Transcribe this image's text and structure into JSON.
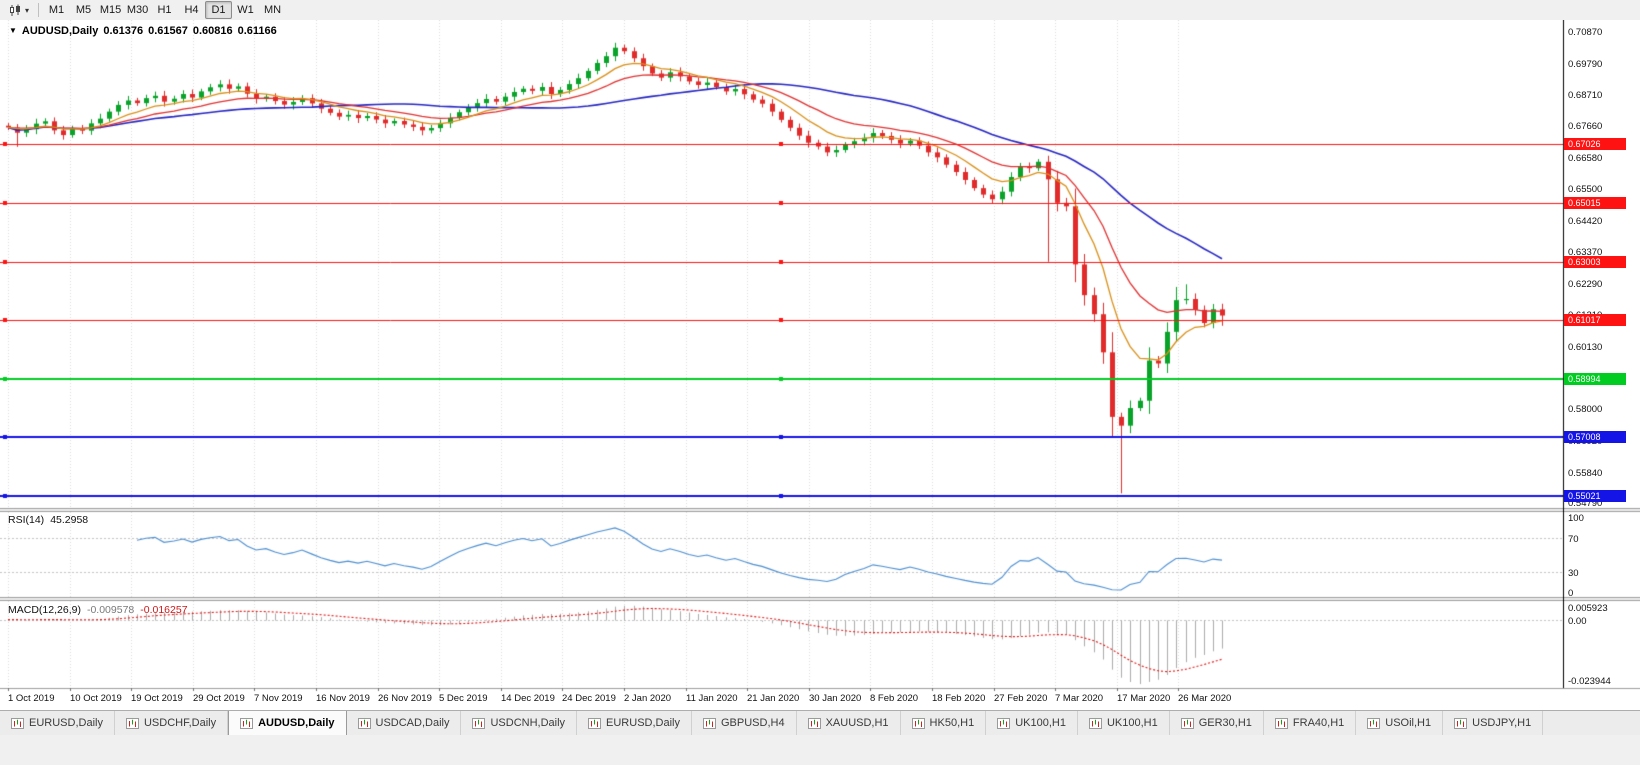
{
  "toolbar": {
    "chart_type_caret": "▾",
    "timeframes": [
      {
        "label": "M1",
        "active": false
      },
      {
        "label": "M5",
        "active": false
      },
      {
        "label": "M15",
        "active": false
      },
      {
        "label": "M30",
        "active": false
      },
      {
        "label": "H1",
        "active": false
      },
      {
        "label": "H4",
        "active": false
      },
      {
        "label": "D1",
        "active": true
      },
      {
        "label": "W1",
        "active": false
      },
      {
        "label": "MN",
        "active": false
      }
    ]
  },
  "chart_header": {
    "marker": "▼",
    "symbol": "AUDUSD,Daily",
    "open": "0.61376",
    "high": "0.61567",
    "low": "0.60816",
    "close": "0.61166"
  },
  "rsi_panel": {
    "name": "RSI(14)",
    "value": "45.2958",
    "line_color": "#4d8fd1",
    "level_lines": [
      70,
      30
    ],
    "ticks": [
      {
        "value": 100,
        "label": "100"
      },
      {
        "value": 70,
        "label": "70"
      },
      {
        "value": 30,
        "label": "30"
      },
      {
        "value": 0,
        "label": "0"
      }
    ]
  },
  "macd_panel": {
    "name": "MACD(12,26,9)",
    "main_value": "-0.009578",
    "signal_value": "-0.016257",
    "histogram_color": "#ababab",
    "signal_color": "#e01818",
    "ticks": {
      "top": "0.005923",
      "zero": "0.00",
      "bottom": "-0.023944"
    }
  },
  "price_axis": {
    "ticks": [
      "0.70870",
      "0.69790",
      "0.68710",
      "0.67660",
      "0.66580",
      "0.65500",
      "0.64420",
      "0.63370",
      "0.62290",
      "0.61210",
      "0.60130",
      "0.59080",
      "0.58000",
      "0.56920",
      "0.55840",
      "0.54790"
    ]
  },
  "levels": [
    {
      "label": "0.67026",
      "price": 0.67026,
      "color": "#ff1212",
      "width": 1,
      "text": "#ffffff"
    },
    {
      "label": "0.65015",
      "price": 0.65015,
      "color": "#ff1212",
      "width": 1,
      "text": "#ffffff"
    },
    {
      "label": "0.63003",
      "price": 0.63003,
      "color": "#ff1212",
      "width": 1,
      "text": "#ffffff"
    },
    {
      "label": "0.61017",
      "price": 0.61017,
      "color": "#ff1212",
      "width": 1,
      "text": "#ffffff"
    },
    {
      "label": "0.58994",
      "price": 0.58994,
      "color": "#00cc22",
      "width": 2,
      "text": "#ffffff"
    },
    {
      "label": "0.57008",
      "price": 0.57008,
      "color": "#1414e6",
      "width": 2,
      "text": "#ffffff"
    },
    {
      "label": "0.55021",
      "price": 0.55021,
      "color": "#1414e6",
      "width": 2,
      "text": "#ffffff"
    }
  ],
  "date_axis": [
    "1 Oct 2019",
    "10 Oct 2019",
    "19 Oct 2019",
    "29 Oct 2019",
    "7 Nov 2019",
    "16 Nov 2019",
    "26 Nov 2019",
    "5 Dec 2019",
    "14 Dec 2019",
    "24 Dec 2019",
    "2 Jan 2020",
    "11 Jan 2020",
    "21 Jan 2020",
    "30 Jan 2020",
    "8 Feb 2020",
    "18 Feb 2020",
    "27 Feb 2020",
    "7 Mar 2020",
    "17 Mar 2020",
    "26 Mar 2020"
  ],
  "tabs": [
    {
      "label": "EURUSD,Daily",
      "active": false
    },
    {
      "label": "USDCHF,Daily",
      "active": false
    },
    {
      "label": "AUDUSD,Daily",
      "active": true
    },
    {
      "label": "USDCAD,Daily",
      "active": false
    },
    {
      "label": "USDCNH,Daily",
      "active": false
    },
    {
      "label": "EURUSD,Daily",
      "active": false
    },
    {
      "label": "GBPUSD,H4",
      "active": false
    },
    {
      "label": "XAUUSD,H1",
      "active": false
    },
    {
      "label": "HK50,H1",
      "active": false
    },
    {
      "label": "UK100,H1",
      "active": false
    },
    {
      "label": "UK100,H1",
      "active": false
    },
    {
      "label": "GER30,H1",
      "active": false
    },
    {
      "label": "FRA40,H1",
      "active": false
    },
    {
      "label": "USOil,H1",
      "active": false
    },
    {
      "label": "USDJPY,H1",
      "active": false
    }
  ],
  "chart_data": {
    "type": "candlestick",
    "symbol": "AUDUSD",
    "timeframe": "Daily",
    "title": "AUDUSD,Daily",
    "ohlc_current": {
      "open": 0.61376,
      "high": 0.61567,
      "low": 0.60816,
      "close": 0.61166
    },
    "x_labels": [
      "1 Oct 2019",
      "10 Oct 2019",
      "19 Oct 2019",
      "29 Oct 2019",
      "7 Nov 2019",
      "16 Nov 2019",
      "26 Nov 2019",
      "5 Dec 2019",
      "14 Dec 2019",
      "24 Dec 2019",
      "2 Jan 2020",
      "11 Jan 2020",
      "21 Jan 2020",
      "30 Jan 2020",
      "8 Feb 2020",
      "18 Feb 2020",
      "27 Feb 2020",
      "7 Mar 2020",
      "17 Mar 2020",
      "26 Mar 2020"
    ],
    "closes": [
      0.6758,
      0.674,
      0.6752,
      0.6771,
      0.6779,
      0.6748,
      0.6732,
      0.6755,
      0.6747,
      0.6772,
      0.6788,
      0.6812,
      0.6835,
      0.685,
      0.6841,
      0.6858,
      0.6866,
      0.6846,
      0.6856,
      0.6872,
      0.686,
      0.6881,
      0.6895,
      0.6905,
      0.689,
      0.6898,
      0.6873,
      0.6855,
      0.6863,
      0.6848,
      0.6836,
      0.6845,
      0.6858,
      0.684,
      0.6822,
      0.6808,
      0.6795,
      0.6801,
      0.679,
      0.6797,
      0.6785,
      0.6772,
      0.678,
      0.6768,
      0.676,
      0.6748,
      0.6756,
      0.6772,
      0.6791,
      0.681,
      0.6826,
      0.6841,
      0.6855,
      0.6846,
      0.6863,
      0.6879,
      0.689,
      0.6883,
      0.6896,
      0.6872,
      0.6886,
      0.6906,
      0.6926,
      0.6951,
      0.6978,
      0.7001,
      0.703,
      0.7018,
      0.6994,
      0.6967,
      0.6942,
      0.6928,
      0.6946,
      0.6932,
      0.6915,
      0.6903,
      0.6911,
      0.6896,
      0.6881,
      0.6889,
      0.6871,
      0.6853,
      0.6839,
      0.6812,
      0.6784,
      0.6757,
      0.673,
      0.6706,
      0.6693,
      0.6673,
      0.6681,
      0.6699,
      0.6711,
      0.6723,
      0.6739,
      0.6729,
      0.6716,
      0.6703,
      0.6713,
      0.6696,
      0.6673,
      0.6656,
      0.6631,
      0.6606,
      0.6579,
      0.6551,
      0.6529,
      0.6513,
      0.6539,
      0.6589,
      0.6623,
      0.6619,
      0.6641,
      0.6581,
      0.6501,
      0.6489,
      0.6291,
      0.6186,
      0.6121,
      0.5991,
      0.5771,
      0.5741,
      0.5801,
      0.5826,
      0.5963,
      0.5953,
      0.6061,
      0.6169,
      0.6173,
      0.6136,
      0.6091,
      0.6138,
      0.6117
    ],
    "overrides": {
      "1": {
        "l": 0.6692
      },
      "113": {
        "l": 0.63
      },
      "121": {
        "l": 0.551
      },
      "127": {
        "h": 0.6214
      },
      "128": {
        "h": 0.6223
      },
      "132": {
        "o": 0.61376,
        "h": 0.61567,
        "l": 0.60816,
        "c": 0.61166
      }
    },
    "candle_up_color": "#0aa32a",
    "candle_down_color": "#e12b2b",
    "moving_averages": [
      {
        "name": "fast-ma",
        "type": "ema",
        "period": 8,
        "color": "#d99018"
      },
      {
        "name": "medium-ma",
        "type": "ema",
        "period": 17,
        "color": "#e03030"
      },
      {
        "name": "slow-ma",
        "type": "sma",
        "period": 34,
        "color": "#2626c2"
      }
    ],
    "price_range": {
      "axis_top": 0.7087,
      "axis_bottom": 0.5479
    },
    "horizontal_levels": [
      0.67026,
      0.65015,
      0.63003,
      0.61017,
      0.58994,
      0.57008,
      0.55021
    ],
    "rsi": {
      "period": 14,
      "current": 45.2958,
      "range": [
        0,
        100
      ],
      "levels": [
        70,
        30
      ]
    },
    "macd": {
      "fast": 12,
      "slow": 26,
      "signal": 9,
      "current_main": -0.009578,
      "current_signal": -0.016257,
      "display_max": 0.005923,
      "display_min": -0.023944
    }
  }
}
